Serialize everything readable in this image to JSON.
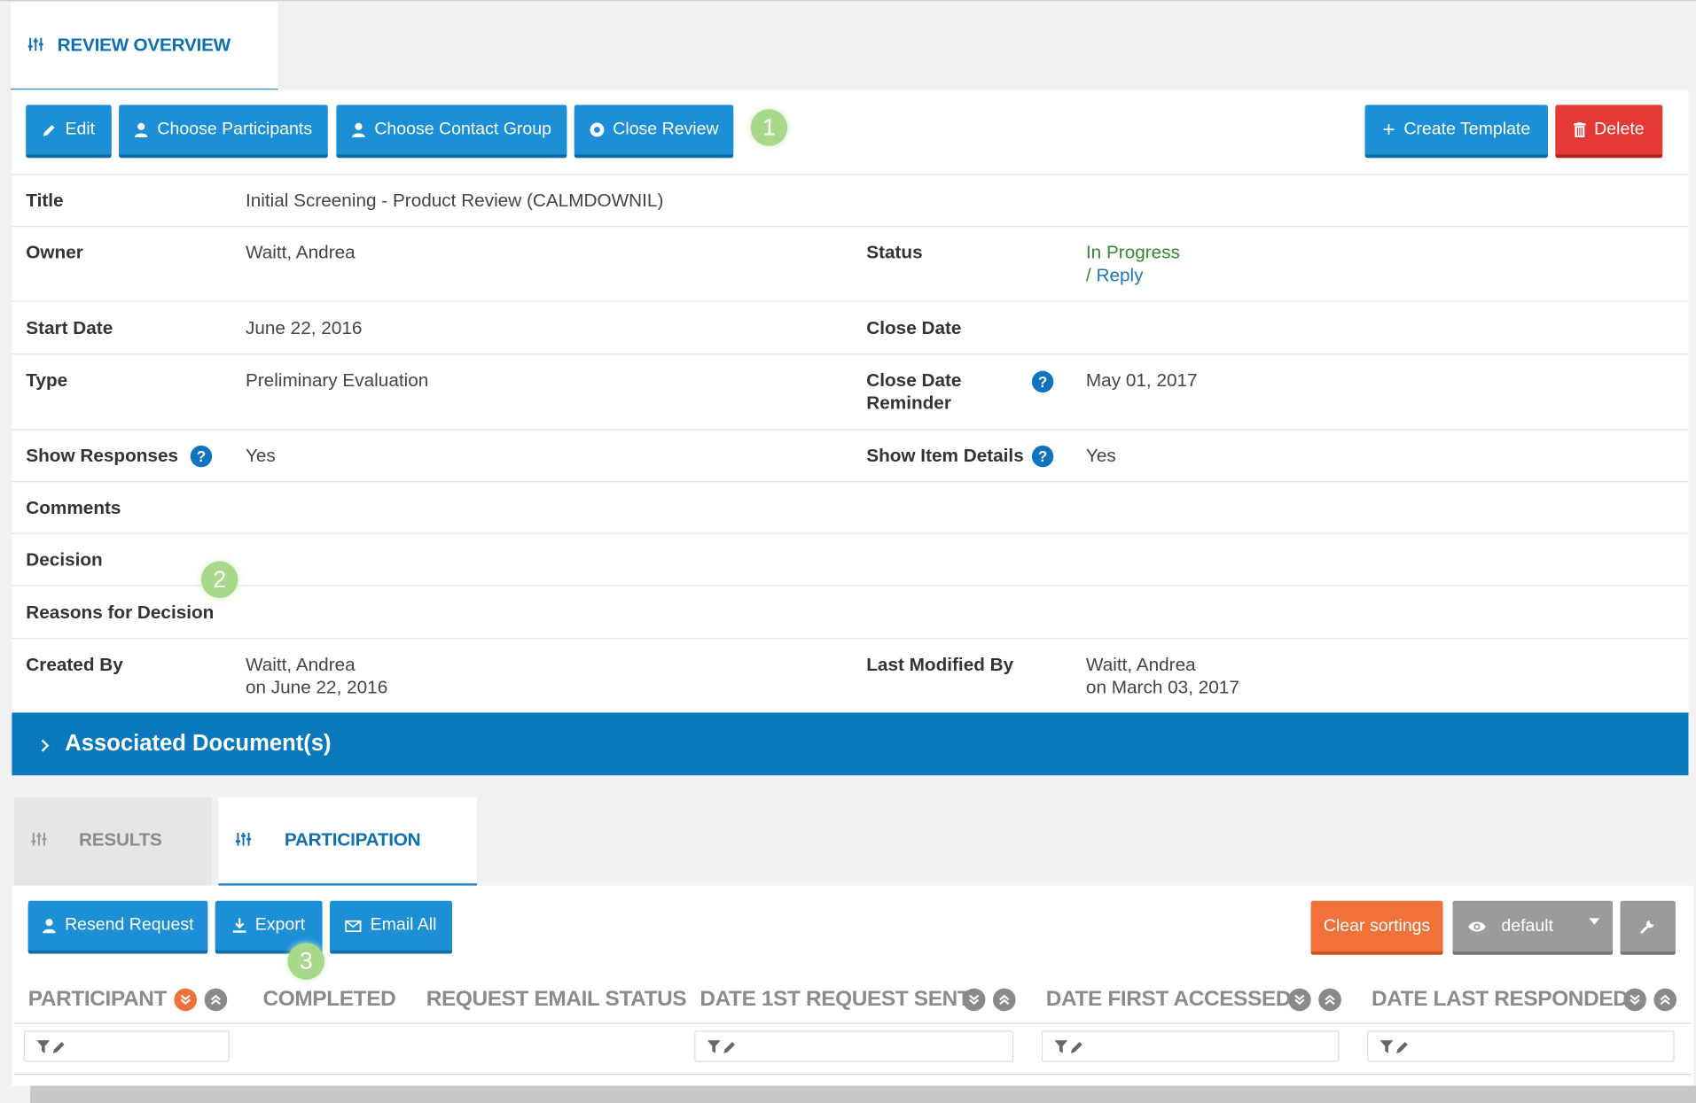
{
  "top_tab": {
    "label": "REVIEW OVERVIEW"
  },
  "toolbar": {
    "edit": "Edit",
    "choose_participants": "Choose Participants",
    "choose_contact_group": "Choose Contact Group",
    "close_review": "Close Review",
    "create_template": "Create Template",
    "delete": "Delete"
  },
  "markers": [
    "1",
    "2",
    "3"
  ],
  "details": {
    "title_label": "Title",
    "title_value": "Initial Screening - Product Review (CALMDOWNIL)",
    "owner_label": "Owner",
    "owner_value": "Waitt, Andrea",
    "status_label": "Status",
    "status_value": "In Progress",
    "status_sep": "/",
    "status_link": "Reply",
    "start_date_label": "Start Date",
    "start_date_value": "June 22, 2016",
    "close_date_label": "Close Date",
    "type_label": "Type",
    "type_value": "Preliminary Evaluation",
    "close_reminder_label_1": "Close Date",
    "close_reminder_label_2": "Reminder",
    "close_reminder_value": "May 01, 2017",
    "show_responses_label": "Show Responses",
    "show_responses_value": "Yes",
    "show_item_details_label": "Show Item Details",
    "show_item_details_value": "Yes",
    "comments_label": "Comments",
    "decision_label": "Decision",
    "reasons_label": "Reasons for Decision",
    "created_by_label": "Created By",
    "created_by_name": "Waitt, Andrea",
    "created_by_date": "on June 22, 2016",
    "modified_by_label": "Last Modified By",
    "modified_by_name": "Waitt, Andrea",
    "modified_by_date": "on March 03, 2017"
  },
  "associated_docs": {
    "label": "Associated Document(s)"
  },
  "lower_tabs": {
    "results": "RESULTS",
    "participation": "PARTICIPATION"
  },
  "participation_toolbar": {
    "resend": "Resend Request",
    "export": "Export",
    "email_all": "Email All",
    "clear_sortings": "Clear sortings",
    "view_select": "default"
  },
  "columns": [
    "PARTICIPANT",
    "COMPLETED",
    "REQUEST EMAIL STATUS",
    "DATE 1ST REQUEST SENT",
    "DATE FIRST ACCESSED",
    "DATE LAST RESPONDED"
  ],
  "colors": {
    "accent": "#1c8fd6",
    "header_bar": "#0a78bd",
    "danger": "#e53935",
    "orange": "#f0713a",
    "status_green": "#2e8b2e"
  }
}
